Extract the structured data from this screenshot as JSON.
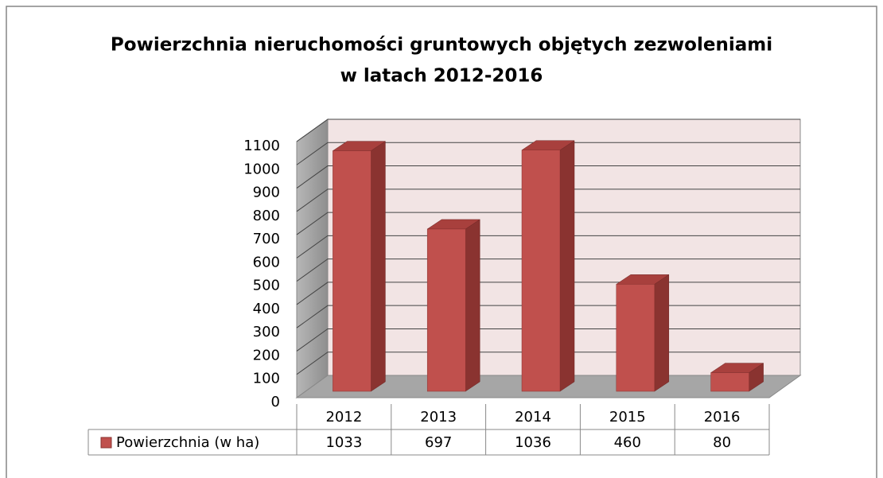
{
  "chart_data": {
    "type": "bar3d",
    "title": [
      "Powierzchnia nieruchomości gruntowych objętych zezwoleniami",
      "w latach 2012-2016"
    ],
    "categories": [
      "2012",
      "2013",
      "2014",
      "2015",
      "2016"
    ],
    "series": [
      {
        "name": "Powierzchnia (w ha)",
        "color": "#c0504d",
        "values": [
          1033,
          697,
          1036,
          460,
          80
        ]
      }
    ],
    "ylim": [
      0,
      1100
    ],
    "yticks": [
      0,
      100,
      200,
      300,
      400,
      500,
      600,
      700,
      800,
      900,
      1000,
      1100
    ],
    "grid": true,
    "legend": "data-table"
  }
}
